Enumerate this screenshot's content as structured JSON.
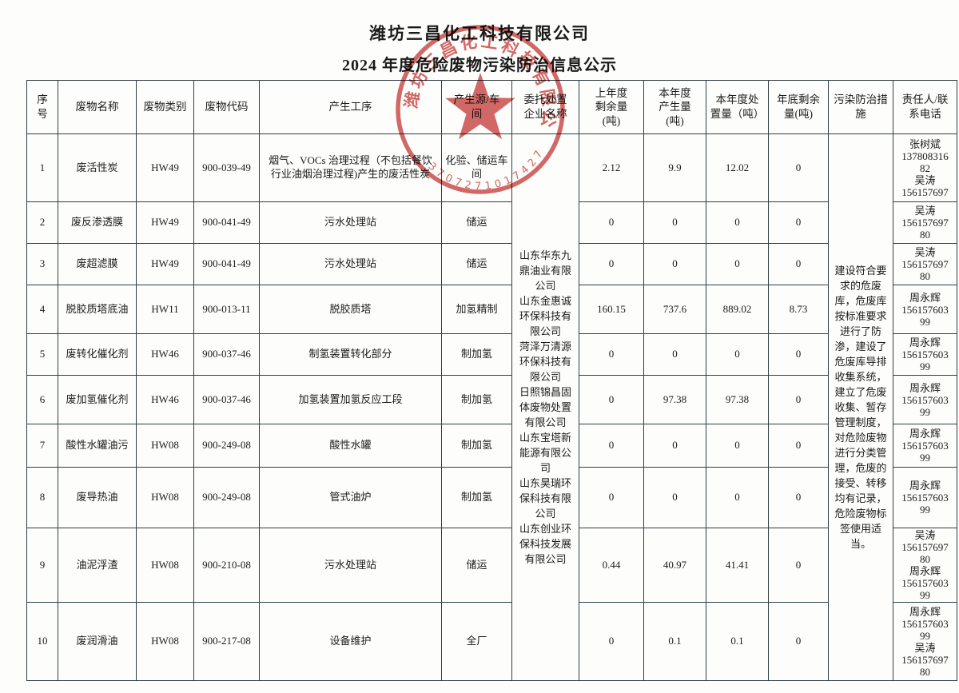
{
  "page": {
    "title": "潍坊三昌化工科技有限公司",
    "subtitle": "2024 年度危险废物污染防治信息公示"
  },
  "stamp": {
    "company": "潍坊三昌化工科技有限公司",
    "serial": "3707271017427"
  },
  "table": {
    "headers": [
      "序\n号",
      "废物名称",
      "废物类别",
      "废物代码",
      "产生工序",
      "产生源/车\n间",
      "委托处置\n企业名称",
      "上年度\n剩余量\n(吨)",
      "本年度\n产生量\n(吨)",
      "本年度处\n置量（吨）",
      "年底剩余\n量(吨)",
      "污染防治措\n施",
      "责任人/联\n系电话"
    ],
    "entrusted_companies": [
      "山东华东九鼎油业有限公司",
      "山东金惠诚环保科技有限公司",
      "菏泽万清源环保科技有限公司",
      "日照锦昌固体废物处置有限公司",
      "山东宝塔新能源有限公司",
      "山东昊瑞环保科技有限公司",
      "山东创业环保科技发展有限公司"
    ],
    "measures": "建设符合要求的危废库，危废库按标准要求进行了防渗，建设了危废库导排收集系统，建立了危废收集、暂存管理制度，对危险废物进行分类管理，危废的接受、转移均有记录，危险废物标签使用适当。",
    "rows": [
      {
        "no": "1",
        "name": "废活性炭",
        "category": "HW49",
        "code": "900-039-49",
        "process": "烟气、VOCs 治理过程（不包括餐饮行业油烟治理过程)产生的废活性炭",
        "source": "化验、储运车间",
        "prev": "2.12",
        "produced": "9.9",
        "disposed": "12.02",
        "remain": "0",
        "contact": [
          "张树斌",
          "13780831682",
          "吴涛",
          "156157697"
        ]
      },
      {
        "no": "2",
        "name": "废反渗透膜",
        "category": "HW49",
        "code": "900-041-49",
        "process": "污水处理站",
        "source": "储运",
        "prev": "0",
        "produced": "0",
        "disposed": "0",
        "remain": "0",
        "contact": [
          "吴涛",
          "15615769780"
        ]
      },
      {
        "no": "3",
        "name": "废超滤膜",
        "category": "HW49",
        "code": "900-041-49",
        "process": "污水处理站",
        "source": "储运",
        "prev": "0",
        "produced": "0",
        "disposed": "0",
        "remain": "0",
        "contact": [
          "吴涛",
          "15615769780"
        ]
      },
      {
        "no": "4",
        "name": "脱胶质塔底油",
        "category": "HW11",
        "code": "900-013-11",
        "process": "脱胶质塔",
        "source": "加氢精制",
        "prev": "160.15",
        "produced": "737.6",
        "disposed": "889.02",
        "remain": "8.73",
        "contact": [
          "周永辉",
          "15615760399"
        ]
      },
      {
        "no": "5",
        "name": "废转化催化剂",
        "category": "HW46",
        "code": "900-037-46",
        "process": "制氢装置转化部分",
        "source": "制加氢",
        "prev": "0",
        "produced": "0",
        "disposed": "0",
        "remain": "0",
        "contact": [
          "周永辉",
          "15615760399"
        ]
      },
      {
        "no": "6",
        "name": "废加氢催化剂",
        "category": "HW46",
        "code": "900-037-46",
        "process": "加氢装置加氢反应工段",
        "source": "制加氢",
        "prev": "0",
        "produced": "97.38",
        "disposed": "97.38",
        "remain": "0",
        "contact": [
          "周永辉",
          "15615760399"
        ]
      },
      {
        "no": "7",
        "name": "酸性水罐油污",
        "category": "HW08",
        "code": "900-249-08",
        "process": "酸性水罐",
        "source": "制加氢",
        "prev": "0",
        "produced": "0",
        "disposed": "0",
        "remain": "0",
        "contact": [
          "周永辉",
          "15615760399"
        ]
      },
      {
        "no": "8",
        "name": "废导热油",
        "category": "HW08",
        "code": "900-249-08",
        "process": "管式油炉",
        "source": "制加氢",
        "prev": "0",
        "produced": "0",
        "disposed": "0",
        "remain": "0",
        "contact": [
          "周永辉",
          "15615760399"
        ]
      },
      {
        "no": "9",
        "name": "油泥浮渣",
        "category": "HW08",
        "code": "900-210-08",
        "process": "污水处理站",
        "source": "储运",
        "prev": "0.44",
        "produced": "40.97",
        "disposed": "41.41",
        "remain": "0",
        "contact": [
          "吴涛",
          "15615769780",
          "周永辉",
          "15615760399"
        ]
      },
      {
        "no": "10",
        "name": "废润滑油",
        "category": "HW08",
        "code": "900-217-08",
        "process": "设备维护",
        "source": "全厂",
        "prev": "0",
        "produced": "0.1",
        "disposed": "0.1",
        "remain": "0",
        "contact": [
          "周永辉",
          "15615760399",
          "吴涛",
          "15615769780"
        ]
      }
    ]
  },
  "colors": {
    "seal_red": "#c43431",
    "border": "#2f3e45",
    "ink": "#1b1b1b"
  }
}
